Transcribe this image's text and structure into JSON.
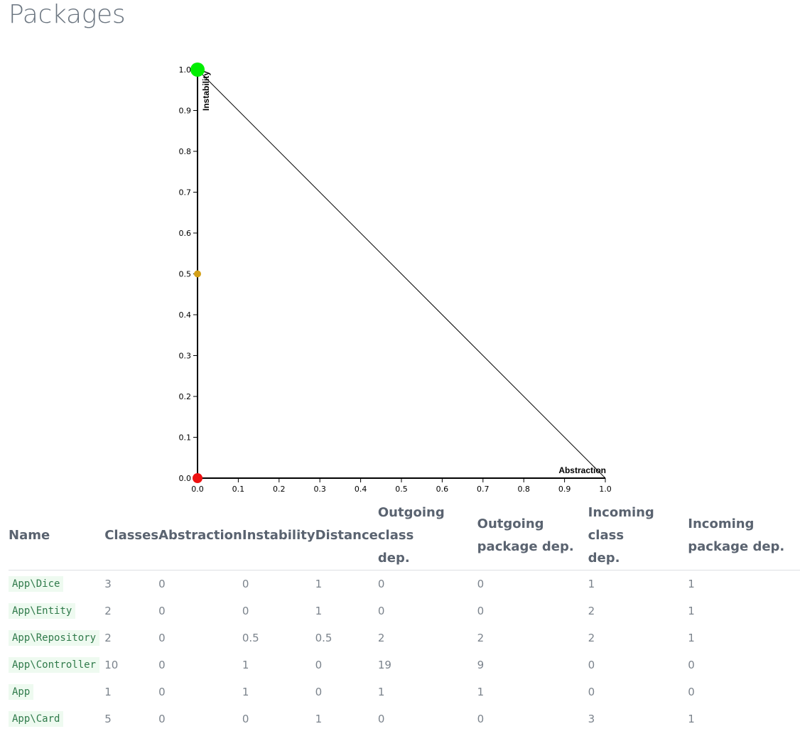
{
  "page": {
    "title": "Packages"
  },
  "chart_data": {
    "type": "scatter",
    "title": "",
    "xlabel": "Abstraction",
    "ylabel": "Instability",
    "xlim": [
      0,
      1
    ],
    "ylim": [
      0,
      1
    ],
    "x_ticks": [
      "0.0",
      "0.1",
      "0.2",
      "0.3",
      "0.4",
      "0.5",
      "0.6",
      "0.7",
      "0.8",
      "0.9",
      "1.0"
    ],
    "y_ticks": [
      "0.0",
      "0.1",
      "0.2",
      "0.3",
      "0.4",
      "0.5",
      "0.6",
      "0.7",
      "0.8",
      "0.9",
      "1.0"
    ],
    "main_sequence_line": [
      [
        0,
        1
      ],
      [
        1,
        0
      ]
    ],
    "grid": false,
    "points": [
      {
        "x": 0,
        "y": 1,
        "color": "#00ee00",
        "size": "large"
      },
      {
        "x": 0,
        "y": 0.5,
        "color": "#d4a017",
        "size": "small"
      },
      {
        "x": 0,
        "y": 0,
        "color": "#ee1111",
        "size": "medium"
      }
    ]
  },
  "table": {
    "headers": {
      "name": "Name",
      "classes": "Classes",
      "abstraction": "Abstraction",
      "instability": "Instability",
      "distance": "Distance",
      "out_class_a": "Outgoing class",
      "out_class_b": "dep.",
      "out_pkg_a": "Outgoing",
      "out_pkg_b": "package dep.",
      "in_class_a": "Incoming class",
      "in_class_b": "dep.",
      "in_pkg_a": "Incoming",
      "in_pkg_b": "package dep."
    },
    "rows": [
      {
        "name": "App\\Dice",
        "classes": "3",
        "abstraction": "0",
        "instability": "0",
        "distance": "1",
        "out_class": "0",
        "out_pkg": "0",
        "in_class": "1",
        "in_pkg": "1"
      },
      {
        "name": "App\\Entity",
        "classes": "2",
        "abstraction": "0",
        "instability": "0",
        "distance": "1",
        "out_class": "0",
        "out_pkg": "0",
        "in_class": "2",
        "in_pkg": "1"
      },
      {
        "name": "App\\Repository",
        "classes": "2",
        "abstraction": "0",
        "instability": "0.5",
        "distance": "0.5",
        "out_class": "2",
        "out_pkg": "2",
        "in_class": "2",
        "in_pkg": "1"
      },
      {
        "name": "App\\Controller",
        "classes": "10",
        "abstraction": "0",
        "instability": "1",
        "distance": "0",
        "out_class": "19",
        "out_pkg": "9",
        "in_class": "0",
        "in_pkg": "0"
      },
      {
        "name": "App",
        "classes": "1",
        "abstraction": "0",
        "instability": "1",
        "distance": "0",
        "out_class": "1",
        "out_pkg": "1",
        "in_class": "0",
        "in_pkg": "0"
      },
      {
        "name": "App\\Card",
        "classes": "5",
        "abstraction": "0",
        "instability": "0",
        "distance": "1",
        "out_class": "0",
        "out_pkg": "0",
        "in_class": "3",
        "in_pkg": "1"
      }
    ]
  }
}
